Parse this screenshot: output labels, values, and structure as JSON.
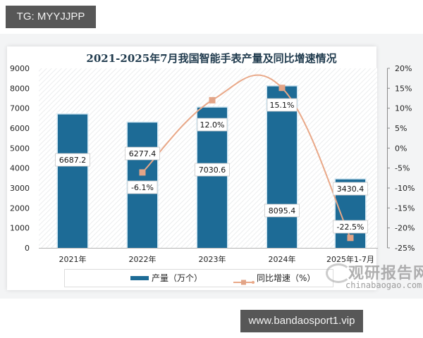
{
  "overlay": {
    "top_tag": "TG: MYYJJPP",
    "bottom_tag": "www.bandaosport1.vip"
  },
  "watermark": {
    "brand_cn": "观研报告网",
    "brand_en": "chinabaogao.com"
  },
  "colors": {
    "bar": "#1d6b96",
    "line": "#e9a888",
    "marker": "#e2a487",
    "title": "#1f3a4d"
  },
  "chart_data": {
    "type": "bar+line",
    "title": "2021-2025年7月我国智能手表产量及同比增速情况",
    "categories": [
      "2021年",
      "2022年",
      "2023年",
      "2024年",
      "2025年1-7月"
    ],
    "series": [
      {
        "name": "产量（万个）",
        "type": "bar",
        "axis": "left",
        "values": [
          6687.2,
          6277.4,
          7030.6,
          8095.4,
          3430.4
        ],
        "labels": [
          "6687.2",
          "6277.4",
          "7030.6",
          "8095.4",
          "3430.4"
        ]
      },
      {
        "name": "同比增速（%）",
        "type": "line",
        "axis": "right",
        "values": [
          null,
          -6.1,
          12.0,
          15.1,
          -22.5
        ],
        "labels": [
          "",
          "-6.1%",
          "12.0%",
          "15.1%",
          "-22.5%"
        ]
      }
    ],
    "left_axis": {
      "ylim": [
        0,
        9000
      ],
      "ticks": [
        "9000",
        "8000",
        "7000",
        "6000",
        "5000",
        "4000",
        "3000",
        "2000",
        "1000",
        "0"
      ]
    },
    "right_axis": {
      "ylim": [
        -25,
        20
      ],
      "ticks": [
        "20%",
        "15%",
        "10%",
        "5%",
        "0%",
        "-5%",
        "-10%",
        "-15%",
        "-20%",
        "-25%"
      ]
    },
    "xlabel": "",
    "ylabel": "",
    "legend_position": "bottom",
    "grid": false
  }
}
